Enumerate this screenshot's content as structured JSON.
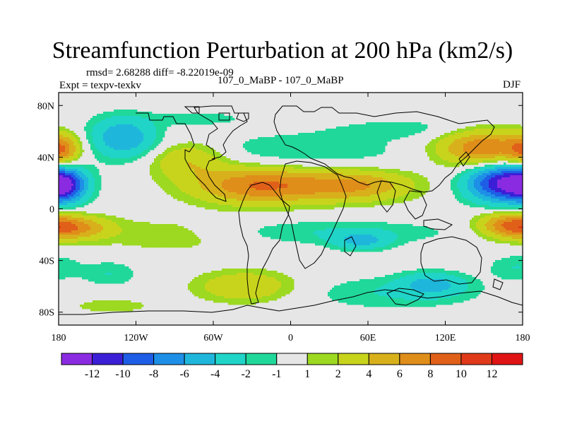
{
  "title": "Streamfunction Perturbation at 200 hPa (km2/s)",
  "stats_line": "rmsd= 2.68288 diff= -8.22019e-09",
  "left_string": "Expt = texpv-texkv",
  "center_string": "107_0_MaBP - 107_0_MaBP",
  "right_string": "DJF",
  "map": {
    "lon_range": [
      -180,
      180
    ],
    "lat_range": [
      -90,
      90
    ],
    "lon_ticks": [
      {
        "value": -180,
        "label": "180"
      },
      {
        "value": -120,
        "label": "120W"
      },
      {
        "value": -60,
        "label": "60W"
      },
      {
        "value": 0,
        "label": "0"
      },
      {
        "value": 60,
        "label": "60E"
      },
      {
        "value": 120,
        "label": "120E"
      },
      {
        "value": 180,
        "label": "180"
      }
    ],
    "lat_ticks": [
      {
        "value": 80,
        "label": "80N"
      },
      {
        "value": 40,
        "label": "40N"
      },
      {
        "value": 0,
        "label": "0"
      },
      {
        "value": -40,
        "label": "40S"
      },
      {
        "value": -80,
        "label": "80S"
      }
    ],
    "background_color": "#e6e6e6",
    "coastline_color": "#000000"
  },
  "colorbar": {
    "colors": [
      "#8a2be2",
      "#3b1fd6",
      "#1e5ee6",
      "#1e8fe6",
      "#1fb6dc",
      "#20d4c8",
      "#20d89a",
      "#e6e6e6",
      "#9cd920",
      "#c8d41c",
      "#d8b01c",
      "#e08e1a",
      "#e0601a",
      "#e03a1a",
      "#e01414"
    ],
    "labels": [
      "-12",
      "-10",
      "-8",
      "-6",
      "-4",
      "-2",
      "-1",
      "1",
      "2",
      "4",
      "6",
      "8",
      "10",
      "12"
    ]
  },
  "chart_data": {
    "type": "heatmap",
    "variable": "streamfunction perturbation",
    "units": "km2/s",
    "level": "200 hPa",
    "season": "DJF",
    "contour_levels": [
      -12,
      -10,
      -8,
      -6,
      -4,
      -2,
      -1,
      1,
      2,
      4,
      6,
      8,
      10,
      12
    ],
    "features": [
      {
        "lon": -175,
        "lat": 18,
        "peak": -8,
        "radii": [
          16,
          13
        ]
      },
      {
        "lon": -130,
        "lat": 55,
        "peak": -6,
        "radii": [
          26,
          16
        ]
      },
      {
        "lon": -178,
        "lat": 45,
        "peak": 6,
        "radii": [
          13,
          12
        ]
      },
      {
        "lon": -80,
        "lat": 38,
        "peak": 4,
        "radii": [
          30,
          14
        ]
      },
      {
        "lon": -170,
        "lat": -15,
        "peak": 6,
        "radii": [
          30,
          9
        ]
      },
      {
        "lon": -90,
        "lat": -20,
        "peak": 2,
        "radii": [
          60,
          14
        ]
      },
      {
        "lon": -140,
        "lat": -50,
        "peak": -2,
        "radii": [
          22,
          10
        ]
      },
      {
        "lon": -140,
        "lat": -75,
        "peak": 1.5,
        "radii": [
          40,
          7
        ]
      },
      {
        "lon": -25,
        "lat": 18,
        "peak": 8,
        "radii": [
          50,
          14
        ]
      },
      {
        "lon": 50,
        "lat": 18,
        "peak": 6,
        "radii": [
          45,
          12
        ]
      },
      {
        "lon": 10,
        "lat": 45,
        "peak": -2,
        "radii": [
          80,
          14
        ]
      },
      {
        "lon": 25,
        "lat": -18,
        "peak": -2,
        "radii": [
          110,
          10
        ]
      },
      {
        "lon": 55,
        "lat": -25,
        "peak": -4,
        "radii": [
          22,
          7
        ]
      },
      {
        "lon": -35,
        "lat": -60,
        "peak": 4,
        "radii": [
          38,
          12
        ]
      },
      {
        "lon": 80,
        "lat": -65,
        "peak": -2,
        "radii": [
          70,
          13
        ]
      },
      {
        "lon": 110,
        "lat": -58,
        "peak": -4,
        "radii": [
          25,
          9
        ]
      },
      {
        "lon": 165,
        "lat": 20,
        "peak": -12,
        "radii": [
          28,
          15
        ]
      },
      {
        "lon": 150,
        "lat": 47,
        "peak": 8,
        "radii": [
          35,
          14
        ]
      },
      {
        "lon": 170,
        "lat": -12,
        "peak": 6,
        "radii": [
          25,
          10
        ]
      },
      {
        "lon": 175,
        "lat": -45,
        "peak": -2,
        "radii": [
          22,
          10
        ]
      },
      {
        "lon": 90,
        "lat": 62,
        "peak": -1.5,
        "radii": [
          60,
          8
        ]
      },
      {
        "lon": -70,
        "lat": 70,
        "peak": -1.5,
        "radii": [
          40,
          6
        ]
      }
    ]
  }
}
